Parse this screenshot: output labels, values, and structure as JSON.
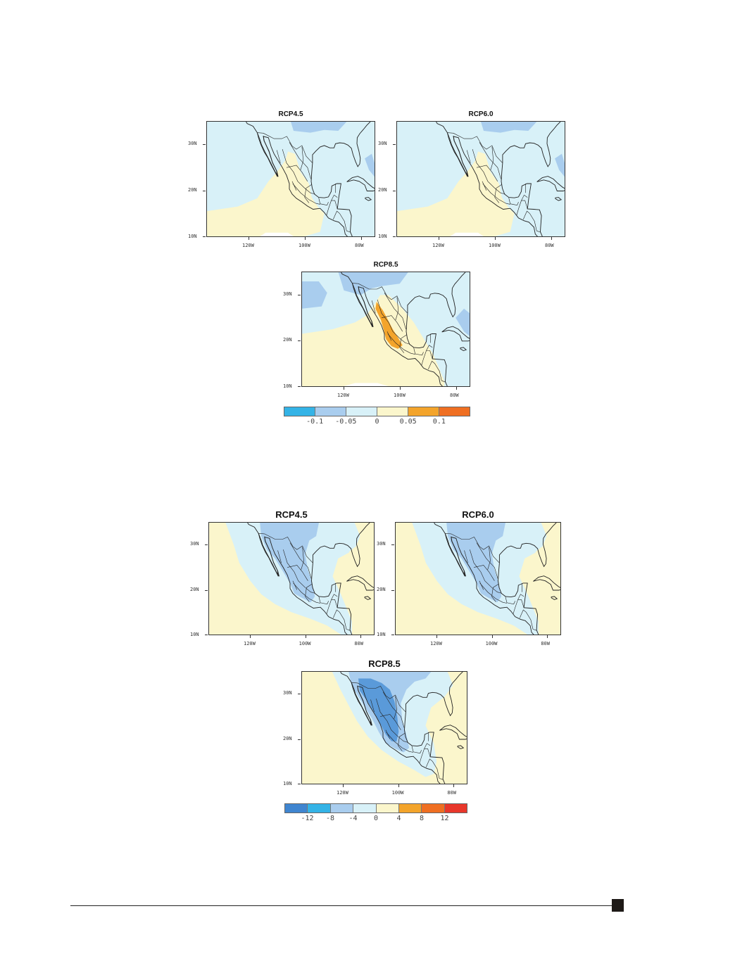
{
  "figure1": {
    "panels": [
      {
        "title": "RCP4.5",
        "variant": "pos"
      },
      {
        "title": "RCP6.0",
        "variant": "pos"
      },
      {
        "title": "RCP8.5",
        "variant": "pos_strong"
      }
    ],
    "lat_labels": [
      "30N",
      "20N",
      "10N"
    ],
    "lon_labels": [
      "120W",
      "100W",
      "80W"
    ],
    "colorbar": {
      "colors": [
        "#34b3e6",
        "#a9cdee",
        "#d8f1f8",
        "#fbf6cc",
        "#f3a42b",
        "#ef6f22"
      ],
      "labels": [
        "-0.1",
        "-0.05",
        "0",
        "0.05",
        "0.1"
      ]
    }
  },
  "figure2": {
    "panels": [
      {
        "title": "RCP4.5",
        "variant": "neg"
      },
      {
        "title": "RCP6.0",
        "variant": "neg"
      },
      {
        "title": "RCP8.5",
        "variant": "neg_strong"
      }
    ],
    "lat_labels": [
      "30N",
      "20N",
      "10N"
    ],
    "lon_labels": [
      "120W",
      "100W",
      "80W"
    ],
    "colorbar": {
      "colors": [
        "#3f85d0",
        "#34b3e6",
        "#a9cdee",
        "#d8f1f8",
        "#fbf6cc",
        "#f3a42b",
        "#ef6f22",
        "#e8372b"
      ],
      "labels": [
        "-12",
        "-8",
        "-4",
        "0",
        "4",
        "8",
        "12"
      ]
    }
  },
  "palette": {
    "light_blue": "#d8f1f8",
    "mid_blue": "#a9cdee",
    "blue": "#8fb8e6",
    "strong_blue": "#5a9ad9",
    "light_yellow": "#fbf6cc",
    "orange": "#f3a42b",
    "outline": "#222222"
  }
}
